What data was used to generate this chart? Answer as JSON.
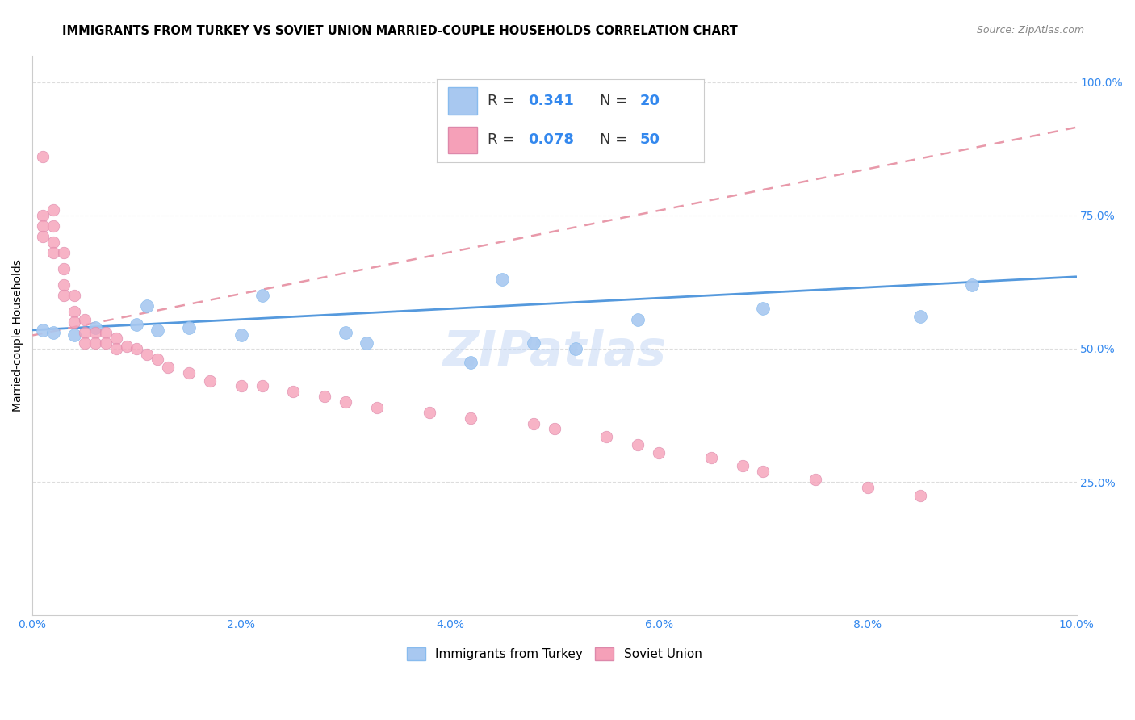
{
  "title": "IMMIGRANTS FROM TURKEY VS SOVIET UNION MARRIED-COUPLE HOUSEHOLDS CORRELATION CHART",
  "source": "Source: ZipAtlas.com",
  "ylabel": "Married-couple Households",
  "xmin": 0.0,
  "xmax": 0.1,
  "ymin": 0.0,
  "ymax": 1.05,
  "turkey_color": "#a8c8f0",
  "soviet_color": "#f5a0b8",
  "turkey_line_color": "#5599dd",
  "soviet_line_color": "#e899aa",
  "turkey_x": [
    0.001,
    0.002,
    0.004,
    0.006,
    0.01,
    0.011,
    0.012,
    0.015,
    0.02,
    0.022,
    0.03,
    0.032,
    0.042,
    0.045,
    0.048,
    0.052,
    0.058,
    0.07,
    0.085,
    0.09
  ],
  "turkey_y": [
    0.535,
    0.53,
    0.525,
    0.54,
    0.545,
    0.58,
    0.535,
    0.54,
    0.525,
    0.6,
    0.53,
    0.51,
    0.475,
    0.63,
    0.51,
    0.5,
    0.555,
    0.575,
    0.56,
    0.62
  ],
  "soviet_x": [
    0.001,
    0.001,
    0.001,
    0.001,
    0.002,
    0.002,
    0.002,
    0.002,
    0.003,
    0.003,
    0.003,
    0.003,
    0.004,
    0.004,
    0.004,
    0.005,
    0.005,
    0.005,
    0.006,
    0.006,
    0.007,
    0.007,
    0.008,
    0.008,
    0.009,
    0.01,
    0.011,
    0.012,
    0.013,
    0.015,
    0.017,
    0.02,
    0.022,
    0.025,
    0.028,
    0.03,
    0.033,
    0.038,
    0.042,
    0.048,
    0.05,
    0.055,
    0.058,
    0.06,
    0.065,
    0.068,
    0.07,
    0.075,
    0.08,
    0.085
  ],
  "soviet_y": [
    0.86,
    0.75,
    0.73,
    0.71,
    0.76,
    0.73,
    0.7,
    0.68,
    0.68,
    0.65,
    0.62,
    0.6,
    0.6,
    0.57,
    0.55,
    0.555,
    0.53,
    0.51,
    0.53,
    0.51,
    0.53,
    0.51,
    0.52,
    0.5,
    0.505,
    0.5,
    0.49,
    0.48,
    0.465,
    0.455,
    0.44,
    0.43,
    0.43,
    0.42,
    0.41,
    0.4,
    0.39,
    0.38,
    0.37,
    0.36,
    0.35,
    0.335,
    0.32,
    0.305,
    0.295,
    0.28,
    0.27,
    0.255,
    0.24,
    0.225
  ],
  "watermark": "ZIPatlas",
  "turkey_line_x0": 0.0,
  "turkey_line_x1": 0.1,
  "turkey_line_y0": 0.535,
  "turkey_line_y1": 0.635,
  "soviet_line_x0": 0.0,
  "soviet_line_x1": 0.1,
  "soviet_line_y0": 0.525,
  "soviet_line_y1": 0.915
}
